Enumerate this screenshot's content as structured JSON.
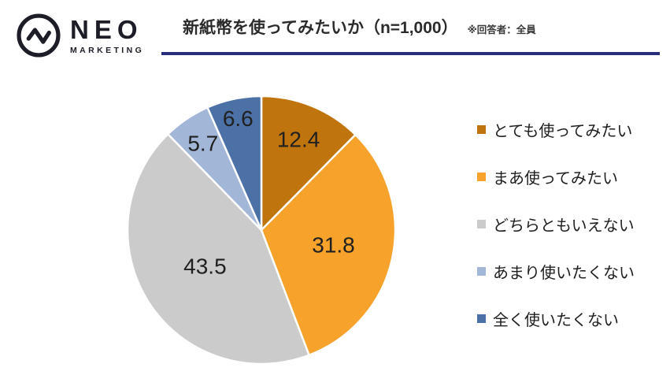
{
  "header": {
    "logo": {
      "name": "NEO",
      "sub": "MARKETING"
    },
    "title": "新紙幣を使ってみたいか（n=1,000）",
    "note": "※回答者：全員"
  },
  "colors": {
    "underline": "#272F7D",
    "logo_ink": "#1C1D26",
    "label_ink": "#202020"
  },
  "chart_data": {
    "type": "pie",
    "title": "新紙幣を使ってみたいか（n=1,000）",
    "subtitle": "※回答者：全員",
    "categories": [
      "とても使ってみたい",
      "まあ使ってみたい",
      "どちらともいえない",
      "あまり使いたくない",
      "全く使いたくない"
    ],
    "values": [
      12.4,
      31.8,
      43.5,
      5.7,
      6.6
    ],
    "labels": [
      "12.4",
      "31.8",
      "43.5",
      "5.7",
      "6.6"
    ],
    "colors": [
      "#C0740D",
      "#F6A22B",
      "#CBCBCB",
      "#A2B6D8",
      "#4C71A6"
    ],
    "start_angle_deg": 0,
    "direction": "clockwise",
    "legend_position": "right",
    "label_radius_fractions": [
      0.73,
      0.55,
      0.5,
      0.78,
      0.85
    ]
  }
}
